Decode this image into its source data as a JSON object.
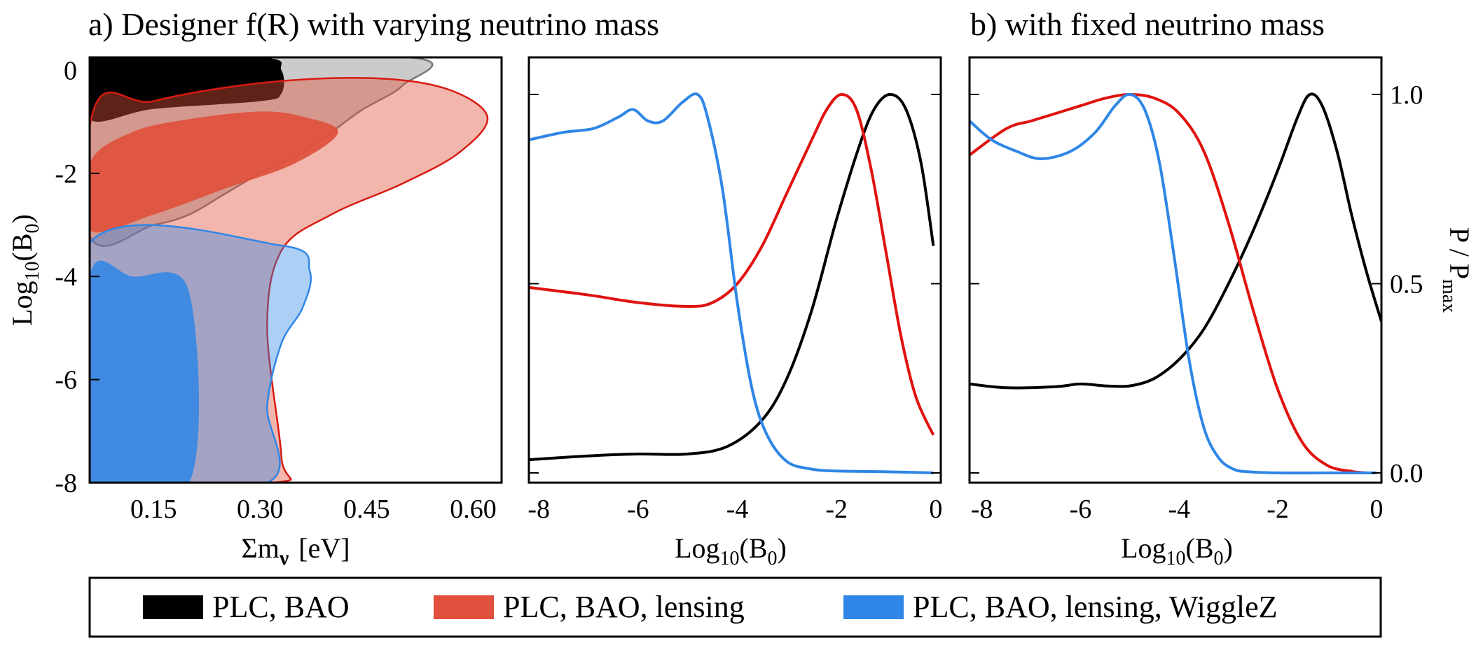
{
  "titles": {
    "panel_a": "a) Designer f(R) with varying neutrino mass",
    "panel_b": "b) with fixed neutrino mass"
  },
  "axes": {
    "a_ylabel_main": "Log",
    "a_ylabel_sub": "10",
    "a_ylabel_paren": "(B",
    "a_ylabel_sub2": "0",
    "a_ylabel_close": ")",
    "a_xlabel_sigma": "Σm",
    "a_xlabel_nu": "ν",
    "a_xlabel_unit": "[eV]",
    "b_xlabel_main": "Log",
    "b_xlabel_sub": "10",
    "b_xlabel_paren": "(B",
    "b_xlabel_sub2": "0",
    "b_xlabel_close": ")",
    "right_ylabel_main": "P / P",
    "right_ylabel_sub": "max"
  },
  "ticks": {
    "a_x": [
      "0.15",
      "0.30",
      "0.45",
      "0.60"
    ],
    "a_y": [
      "0",
      "-2",
      "-4",
      "-6",
      "-8"
    ],
    "b_x": [
      "-8",
      "-6",
      "-4",
      "-2",
      "0"
    ],
    "right_y": [
      "1.0",
      "0.5",
      "0.0"
    ]
  },
  "legend": {
    "items": [
      "PLC, BAO",
      "PLC, BAO, lensing",
      "PLC, BAO, lensing, WiggleZ"
    ]
  },
  "colors": {
    "black": "#000000",
    "red_line": "#e0120f",
    "blue_line": "#2f86e6",
    "red_fill": "#e0503c",
    "blue_fill": "#2f86e6"
  },
  "chart_data": [
    {
      "type": "contour",
      "panel": "a",
      "xlabel": "Σmν [eV]",
      "ylabel": "Log10(B0)",
      "xlim": [
        0.06,
        0.64
      ],
      "ylim": [
        -8,
        0.25
      ],
      "xticks": [
        0.15,
        0.3,
        0.45,
        0.6
      ],
      "yticks": [
        0,
        -2,
        -4,
        -6,
        -8
      ],
      "series": [
        {
          "name": "PLC, BAO",
          "color": "#000000",
          "inner_68": [
            [
              0.06,
              0.25
            ],
            [
              0.06,
              -0.95
            ],
            [
              0.15,
              -0.75
            ],
            [
              0.3,
              -0.6
            ],
            [
              0.33,
              -0.45
            ],
            [
              0.33,
              0.0
            ],
            [
              0.3,
              0.25
            ]
          ],
          "outer_95": [
            [
              0.06,
              0.25
            ],
            [
              0.06,
              -3.2
            ],
            [
              0.15,
              -3.0
            ],
            [
              0.2,
              -2.8
            ],
            [
              0.25,
              -2.4
            ],
            [
              0.3,
              -2.0
            ],
            [
              0.37,
              -1.5
            ],
            [
              0.44,
              -0.8
            ],
            [
              0.5,
              -0.3
            ],
            [
              0.51,
              0.25
            ]
          ]
        },
        {
          "name": "PLC, BAO, lensing",
          "color": "#e0503c",
          "inner_68": [
            [
              0.06,
              -1.8
            ],
            [
              0.12,
              -1.2
            ],
            [
              0.2,
              -0.95
            ],
            [
              0.3,
              -0.8
            ],
            [
              0.36,
              -0.9
            ],
            [
              0.41,
              -1.2
            ],
            [
              0.35,
              -1.8
            ],
            [
              0.25,
              -2.3
            ],
            [
              0.15,
              -2.8
            ],
            [
              0.06,
              -3.1
            ]
          ],
          "outer_95": [
            [
              0.06,
              -1.1
            ],
            [
              0.15,
              -0.6
            ],
            [
              0.3,
              -0.25
            ],
            [
              0.45,
              -0.15
            ],
            [
              0.56,
              -0.35
            ],
            [
              0.62,
              -0.9
            ],
            [
              0.58,
              -1.6
            ],
            [
              0.5,
              -2.2
            ],
            [
              0.4,
              -2.8
            ],
            [
              0.33,
              -3.5
            ],
            [
              0.31,
              -5
            ],
            [
              0.33,
              -7.5
            ],
            [
              0.32,
              -8
            ],
            [
              0.06,
              -8
            ]
          ]
        },
        {
          "name": "PLC, BAO, lensing, WiggleZ",
          "color": "#2f86e6",
          "inner_68": [
            [
              0.06,
              -4.0
            ],
            [
              0.12,
              -4.0
            ],
            [
              0.2,
              -4.3
            ],
            [
              0.2,
              -8
            ],
            [
              0.06,
              -8
            ]
          ],
          "outer_95": [
            [
              0.06,
              -3.35
            ],
            [
              0.33,
              -3.4
            ],
            [
              0.37,
              -3.9
            ],
            [
              0.36,
              -4.6
            ],
            [
              0.33,
              -5.3
            ],
            [
              0.31,
              -6.5
            ],
            [
              0.31,
              -8
            ],
            [
              0.06,
              -8
            ]
          ]
        }
      ]
    },
    {
      "type": "line",
      "panel": "b-left",
      "xlabel": "Log10(B0)",
      "xlim": [
        -8.2,
        0.1
      ],
      "ylim": [
        0,
        1.0
      ],
      "xticks": [
        -8,
        -6,
        -4,
        -2,
        0
      ],
      "series": [
        {
          "name": "PLC, BAO",
          "color": "#000000",
          "x": [
            -8.2,
            -7,
            -6,
            -5,
            -4.2,
            -3.5,
            -3,
            -2.5,
            -2,
            -1.5,
            -1.2,
            -0.9,
            -0.6,
            -0.3,
            -0.05
          ],
          "y": [
            0.035,
            0.045,
            0.05,
            0.05,
            0.07,
            0.14,
            0.25,
            0.43,
            0.67,
            0.88,
            0.97,
            1.0,
            0.96,
            0.82,
            0.6
          ]
        },
        {
          "name": "PLC, BAO, lensing",
          "color": "#e0120f",
          "x": [
            -8.2,
            -7,
            -6,
            -5,
            -4.5,
            -4,
            -3.5,
            -3,
            -2.5,
            -2.2,
            -1.9,
            -1.6,
            -1.3,
            -1,
            -0.7,
            -0.4,
            -0.05
          ],
          "y": [
            0.49,
            0.47,
            0.45,
            0.44,
            0.45,
            0.5,
            0.6,
            0.74,
            0.88,
            0.96,
            1.0,
            0.96,
            0.8,
            0.58,
            0.36,
            0.2,
            0.1
          ]
        },
        {
          "name": "PLC, BAO, lensing, WiggleZ",
          "color": "#2f86e6",
          "x": [
            -8.2,
            -7.5,
            -6.9,
            -6.4,
            -6.1,
            -5.8,
            -5.5,
            -5.1,
            -4.8,
            -4.6,
            -4.3,
            -4.0,
            -3.7,
            -3.4,
            -3.0,
            -2.5,
            -2.0,
            -1.0,
            -0.05
          ],
          "y": [
            0.88,
            0.9,
            0.91,
            0.94,
            0.96,
            0.93,
            0.93,
            0.98,
            1.0,
            0.94,
            0.75,
            0.45,
            0.22,
            0.1,
            0.03,
            0.01,
            0.005,
            0.003,
            0.0
          ]
        }
      ]
    },
    {
      "type": "line",
      "panel": "b-right",
      "xlabel": "Log10(B0)",
      "ylabel": "P / Pmax",
      "xlim": [
        -8.25,
        0.1
      ],
      "ylim": [
        0,
        1.0
      ],
      "xticks": [
        -8,
        -6,
        -4,
        -2,
        0
      ],
      "yticks": [
        0.0,
        0.5,
        1.0
      ],
      "series": [
        {
          "name": "PLC, BAO",
          "color": "#000000",
          "x": [
            -8.25,
            -7.5,
            -6.5,
            -6,
            -5.5,
            -5,
            -4.5,
            -4,
            -3.5,
            -3,
            -2.5,
            -2,
            -1.6,
            -1.35,
            -1.1,
            -0.8,
            -0.5,
            -0.2,
            0.1
          ],
          "y": [
            0.235,
            0.225,
            0.228,
            0.235,
            0.23,
            0.23,
            0.25,
            0.3,
            0.38,
            0.5,
            0.64,
            0.8,
            0.94,
            1.0,
            0.97,
            0.85,
            0.68,
            0.53,
            0.4
          ]
        },
        {
          "name": "PLC, BAO, lensing",
          "color": "#e0120f",
          "x": [
            -8.25,
            -7.5,
            -7,
            -6.5,
            -6,
            -5.5,
            -5,
            -4.5,
            -4,
            -3.5,
            -3,
            -2.5,
            -2,
            -1.5,
            -1,
            -0.5,
            -0.2
          ],
          "y": [
            0.84,
            0.91,
            0.93,
            0.95,
            0.97,
            0.99,
            1.0,
            0.99,
            0.95,
            0.85,
            0.66,
            0.43,
            0.22,
            0.08,
            0.02,
            0.004,
            0.0
          ]
        },
        {
          "name": "PLC, BAO, lensing, WiggleZ",
          "color": "#2f86e6",
          "x": [
            -8.25,
            -7.8,
            -7.3,
            -6.8,
            -6.2,
            -5.7,
            -5.3,
            -5.0,
            -4.7,
            -4.4,
            -4.1,
            -3.8,
            -3.5,
            -3.2,
            -2.9,
            -2.6,
            -2.0,
            -1.0,
            0.0
          ],
          "y": [
            0.93,
            0.88,
            0.85,
            0.83,
            0.85,
            0.9,
            0.97,
            1.0,
            0.96,
            0.82,
            0.57,
            0.3,
            0.12,
            0.04,
            0.01,
            0.003,
            0.0,
            0.0,
            0.0
          ]
        }
      ]
    }
  ]
}
